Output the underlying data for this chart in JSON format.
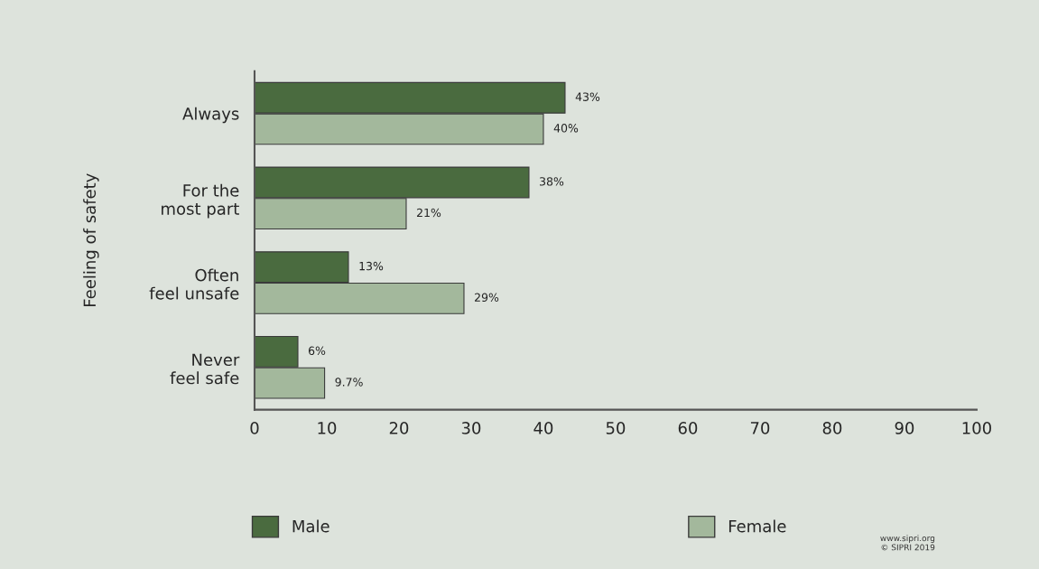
{
  "chart_data": {
    "type": "bar",
    "orientation": "horizontal",
    "ylabel": "Feeling of safety",
    "categories": [
      "Always",
      "For the\nmost part",
      "Often\nfeel unsafe",
      "Never\nfeel safe"
    ],
    "series": [
      {
        "name": "Male",
        "color": "#4a6b3f",
        "values": [
          43,
          38,
          13,
          6
        ],
        "value_labels": [
          "43%",
          "38%",
          "13%",
          "6%"
        ]
      },
      {
        "name": "Female",
        "color": "#a3b89c",
        "values": [
          40,
          21,
          29,
          9.7
        ],
        "value_labels": [
          "40%",
          "21%",
          "29%",
          "9.7%"
        ]
      }
    ],
    "xlim": [
      0,
      100
    ],
    "xticks": [
      0,
      10,
      20,
      30,
      40,
      50,
      60,
      70,
      80,
      90,
      100
    ],
    "grid": false,
    "legend": "bottom",
    "annotations": [
      "www.sipri.org\n© SIPRI 2019"
    ]
  }
}
